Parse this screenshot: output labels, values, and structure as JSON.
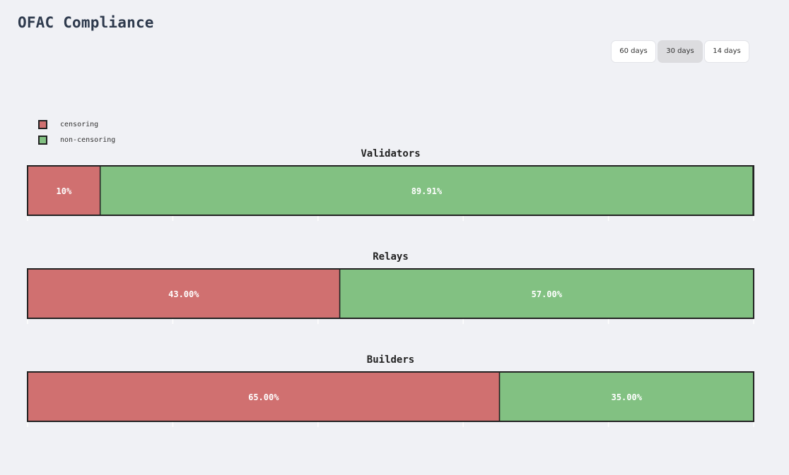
{
  "page": {
    "title": "OFAC Compliance"
  },
  "range_selector": {
    "options": [
      {
        "label": "60 days",
        "active": false
      },
      {
        "label": "30 days",
        "active": true
      },
      {
        "label": "14 days",
        "active": false
      }
    ]
  },
  "legend": {
    "items": [
      {
        "label": "censoring",
        "color": "#d07070"
      },
      {
        "label": "non-censoring",
        "color": "#82c182"
      }
    ]
  },
  "colors": {
    "censoring": "#d07070",
    "non_censoring": "#82c182",
    "outline": "#222222",
    "background": "#f0f1f5"
  },
  "chart_data": [
    {
      "type": "bar",
      "stacked": true,
      "orientation": "horizontal",
      "title": "Validators",
      "xlim": [
        0,
        100
      ],
      "series": [
        {
          "name": "censoring",
          "value": 10,
          "label": "10%"
        },
        {
          "name": "non-censoring",
          "value": 89.91,
          "label": "89.91%"
        }
      ]
    },
    {
      "type": "bar",
      "stacked": true,
      "orientation": "horizontal",
      "title": "Relays",
      "xlim": [
        0,
        100
      ],
      "series": [
        {
          "name": "censoring",
          "value": 43,
          "label": "43.00%"
        },
        {
          "name": "non-censoring",
          "value": 57,
          "label": "57.00%"
        }
      ]
    },
    {
      "type": "bar",
      "stacked": true,
      "orientation": "horizontal",
      "title": "Builders",
      "xlim": [
        0,
        100
      ],
      "series": [
        {
          "name": "censoring",
          "value": 65,
          "label": "65.00%"
        },
        {
          "name": "non-censoring",
          "value": 35,
          "label": "35.00%"
        }
      ]
    }
  ]
}
